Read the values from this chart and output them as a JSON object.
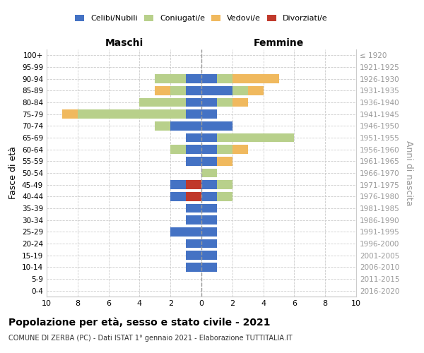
{
  "age_groups": [
    "0-4",
    "5-9",
    "10-14",
    "15-19",
    "20-24",
    "25-29",
    "30-34",
    "35-39",
    "40-44",
    "45-49",
    "50-54",
    "55-59",
    "60-64",
    "65-69",
    "70-74",
    "75-79",
    "80-84",
    "85-89",
    "90-94",
    "95-99",
    "100+"
  ],
  "birth_years": [
    "2016-2020",
    "2011-2015",
    "2006-2010",
    "2001-2005",
    "1996-2000",
    "1991-1995",
    "1986-1990",
    "1981-1985",
    "1976-1980",
    "1971-1975",
    "1966-1970",
    "1961-1965",
    "1956-1960",
    "1951-1955",
    "1946-1950",
    "1941-1945",
    "1936-1940",
    "1931-1935",
    "1926-1930",
    "1921-1925",
    "≤ 1920"
  ],
  "colors": {
    "celibi": "#4472c4",
    "coniugati": "#b8d08b",
    "vedovi": "#f0b95e",
    "divorziati": "#c0392b"
  },
  "maschi": {
    "celibi": [
      0,
      0,
      1,
      1,
      1,
      2,
      1,
      1,
      1,
      1,
      0,
      1,
      1,
      1,
      2,
      1,
      1,
      1,
      1,
      0,
      0
    ],
    "coniugati": [
      0,
      0,
      0,
      0,
      0,
      0,
      0,
      0,
      0,
      0,
      0,
      0,
      1,
      0,
      1,
      7,
      3,
      1,
      2,
      0,
      0
    ],
    "vedovi": [
      0,
      0,
      0,
      0,
      0,
      0,
      0,
      0,
      0,
      0,
      0,
      0,
      0,
      0,
      0,
      1,
      0,
      1,
      0,
      0,
      0
    ],
    "divorziati": [
      0,
      0,
      0,
      0,
      0,
      0,
      0,
      0,
      1,
      1,
      0,
      0,
      0,
      0,
      0,
      0,
      0,
      0,
      0,
      0,
      0
    ]
  },
  "femmine": {
    "celibi": [
      0,
      0,
      1,
      1,
      1,
      1,
      1,
      1,
      1,
      1,
      0,
      1,
      1,
      1,
      2,
      1,
      1,
      2,
      1,
      0,
      0
    ],
    "coniugati": [
      0,
      0,
      0,
      0,
      0,
      0,
      0,
      0,
      1,
      1,
      1,
      0,
      1,
      5,
      0,
      0,
      1,
      1,
      1,
      0,
      0
    ],
    "vedovi": [
      0,
      0,
      0,
      0,
      0,
      0,
      0,
      0,
      0,
      0,
      0,
      1,
      1,
      0,
      0,
      0,
      1,
      1,
      3,
      0,
      0
    ],
    "divorziati": [
      0,
      0,
      0,
      0,
      0,
      0,
      0,
      0,
      0,
      0,
      0,
      0,
      0,
      0,
      0,
      0,
      0,
      0,
      0,
      0,
      0
    ]
  },
  "xlim": 10,
  "title": "Popolazione per età, sesso e stato civile - 2021",
  "subtitle": "COMUNE DI ZERBA (PC) - Dati ISTAT 1° gennaio 2021 - Elaborazione TUTTITALIA.IT",
  "ylabel_left": "Fasce di età",
  "ylabel_right": "Anni di nascita",
  "header_left": "Maschi",
  "header_right": "Femmine"
}
